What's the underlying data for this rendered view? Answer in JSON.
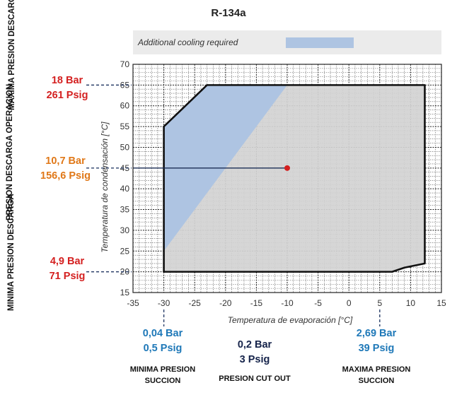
{
  "title": "R-134a",
  "legend": {
    "label": "Additional cooling required",
    "color": "#aec4e2"
  },
  "chart_data": {
    "type": "area",
    "title": "R-134a",
    "xlabel": "Temperatura de evaporación [°C]",
    "ylabel": "Temperatura de condensación [°C]",
    "xlim": [
      -35,
      15
    ],
    "ylim": [
      15,
      70
    ],
    "xticks": [
      -35,
      -30,
      -25,
      -20,
      -15,
      -10,
      -5,
      0,
      5,
      10,
      15
    ],
    "yticks": [
      15,
      20,
      25,
      30,
      35,
      40,
      45,
      50,
      55,
      60,
      65,
      70
    ],
    "grid": true,
    "legend_position": "top",
    "envelope": {
      "x": [
        -30,
        -30,
        -23,
        12.3,
        12.3,
        9,
        7,
        -30
      ],
      "y": [
        20,
        55,
        65,
        65,
        22,
        21,
        20,
        20
      ],
      "fill": "#d2d2d2",
      "stroke": "#111111"
    },
    "cooling_region": {
      "name": "Additional cooling required",
      "x": [
        -30,
        -30,
        -23,
        -10
      ],
      "y": [
        25,
        55,
        65,
        65
      ],
      "fill": "#aec4e2"
    },
    "operating_point": {
      "x": -10,
      "y": 45,
      "color": "#d42020"
    }
  },
  "annotations": {
    "left": [
      {
        "name": "max-discharge",
        "label": "MAXIMA PRESION DESCARGA",
        "bar": "18 Bar",
        "psig": "261 Psig",
        "color": "#d42020",
        "temp": 65
      },
      {
        "name": "operation-discharge",
        "label": "PRESION DESCARGA OPERACION",
        "bar": "10,7 Bar",
        "psig": "156,6 Psig",
        "color": "#e07818",
        "temp": 45
      },
      {
        "name": "min-discharge",
        "label": "MINIMA PRESION DESCARGA",
        "bar": "4,9 Bar",
        "psig": "71 Psig",
        "color": "#d42020",
        "temp": 20
      }
    ],
    "bottom": [
      {
        "name": "min-suction",
        "label": "MINIMA PRESION SUCCION",
        "bar": "0,04 Bar",
        "psig": "0,5 Psig",
        "color": "#1e78b8",
        "temp": -30
      },
      {
        "name": "cut-out",
        "label": "PRESION CUT OUT",
        "bar": "0,2 Bar",
        "psig": "3 Psig",
        "color": "#15234a"
      },
      {
        "name": "max-suction",
        "label": "MAXIMA PRESION SUCCION",
        "bar": "2,69 Bar",
        "psig": "39 Psig",
        "color": "#1e78b8",
        "temp": 5
      }
    ]
  }
}
